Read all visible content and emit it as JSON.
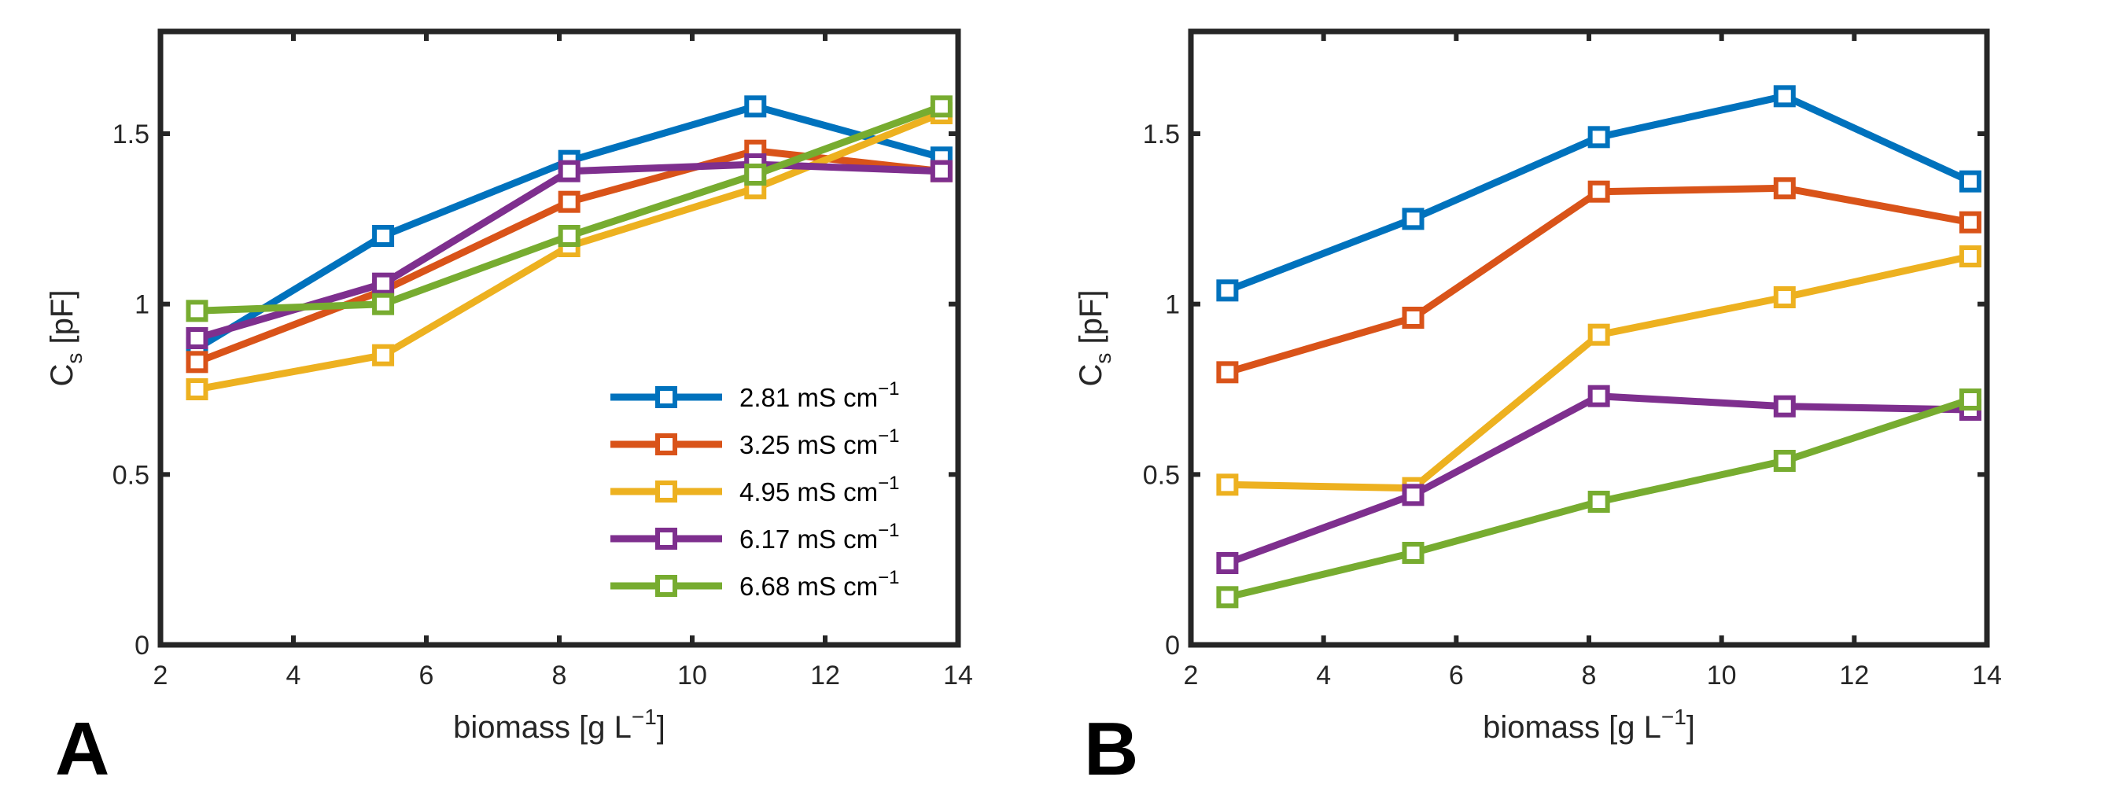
{
  "chart_data": [
    {
      "type": "line",
      "panel_label": "A",
      "x": [
        2.55,
        5.35,
        8.15,
        10.95,
        13.75
      ],
      "xlabel_main": "biomass [g L",
      "xlabel_sup": "−1",
      "xlabel_end": "]",
      "ylabel_main": "C",
      "ylabel_sub": "s",
      "ylabel_end": " [pF]",
      "xlim": [
        2,
        14
      ],
      "ylim": [
        0,
        1.8
      ],
      "xticks": [
        2,
        4,
        6,
        8,
        10,
        12,
        14
      ],
      "yticks": [
        0,
        0.5,
        1,
        1.5
      ],
      "xtick_labels": [
        "2",
        "4",
        "6",
        "8",
        "10",
        "12",
        "14"
      ],
      "ytick_labels": [
        "0",
        "0.5",
        "1",
        "1.5"
      ],
      "legend_position": "bottom-right",
      "series": [
        {
          "name": "2.81 mS cm",
          "sup": "−1",
          "color": "#0072BD",
          "values": [
            0.87,
            1.2,
            1.42,
            1.58,
            1.43
          ]
        },
        {
          "name": "3.25 mS cm",
          "sup": "−1",
          "color": "#D95319",
          "values": [
            0.83,
            1.04,
            1.3,
            1.45,
            1.39
          ]
        },
        {
          "name": "4.95 mS cm",
          "sup": "−1",
          "color": "#EDB120",
          "values": [
            0.75,
            0.85,
            1.17,
            1.34,
            1.56
          ]
        },
        {
          "name": "6.17 mS cm",
          "sup": "−1",
          "color": "#7E2F8E",
          "values": [
            0.9,
            1.06,
            1.39,
            1.41,
            1.39
          ]
        },
        {
          "name": "6.68 mS cm",
          "sup": "−1",
          "color": "#77AC30",
          "values": [
            0.98,
            1.0,
            1.2,
            1.38,
            1.58
          ]
        }
      ]
    },
    {
      "type": "line",
      "panel_label": "B",
      "x": [
        2.55,
        5.35,
        8.15,
        10.95,
        13.75
      ],
      "xlabel_main": "biomass [g L",
      "xlabel_sup": "−1",
      "xlabel_end": "]",
      "ylabel_main": "C",
      "ylabel_sub": "s",
      "ylabel_end": " [pF]",
      "xlim": [
        2,
        14
      ],
      "ylim": [
        0,
        1.8
      ],
      "xticks": [
        2,
        4,
        6,
        8,
        10,
        12,
        14
      ],
      "yticks": [
        0,
        0.5,
        1,
        1.5
      ],
      "xtick_labels": [
        "2",
        "4",
        "6",
        "8",
        "10",
        "12",
        "14"
      ],
      "ytick_labels": [
        "0",
        "0.5",
        "1",
        "1.5"
      ],
      "series": [
        {
          "name": "2.81 mS cm",
          "sup": "−1",
          "color": "#0072BD",
          "values": [
            1.04,
            1.25,
            1.49,
            1.61,
            1.36
          ]
        },
        {
          "name": "3.25 mS cm",
          "sup": "−1",
          "color": "#D95319",
          "values": [
            0.8,
            0.96,
            1.33,
            1.34,
            1.24
          ]
        },
        {
          "name": "4.95 mS cm",
          "sup": "−1",
          "color": "#EDB120",
          "values": [
            0.47,
            0.46,
            0.91,
            1.02,
            1.14
          ]
        },
        {
          "name": "6.17 mS cm",
          "sup": "−1",
          "color": "#7E2F8E",
          "values": [
            0.24,
            0.44,
            0.73,
            0.7,
            0.69
          ]
        },
        {
          "name": "6.68 mS cm",
          "sup": "−1",
          "color": "#77AC30",
          "values": [
            0.14,
            0.27,
            0.42,
            0.54,
            0.72
          ]
        }
      ]
    }
  ]
}
